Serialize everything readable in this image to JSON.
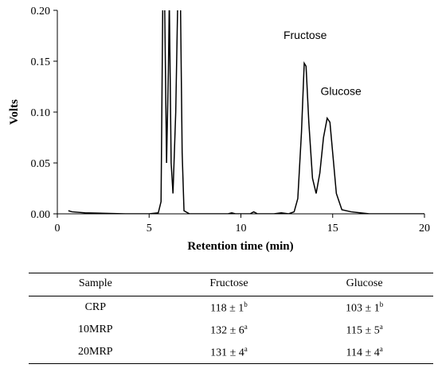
{
  "chart_data": {
    "type": "line",
    "xlabel": "Retention time (min)",
    "ylabel": "Volts",
    "xlim": [
      0,
      20
    ],
    "ylim": [
      0,
      0.2
    ],
    "x_ticks": [
      "0",
      "5",
      "10",
      "15",
      "20"
    ],
    "y_ticks": [
      "0.00",
      "0.05",
      "0.10",
      "0.15",
      "0.20"
    ],
    "grid": false,
    "series": [
      {
        "points": [
          [
            0.6,
            0.003
          ],
          [
            0.8,
            0.002
          ],
          [
            1.5,
            0.001
          ],
          [
            3.7,
            0.0
          ],
          [
            5.0,
            0.0
          ],
          [
            5.5,
            0.001
          ],
          [
            5.65,
            0.012
          ],
          [
            5.75,
            0.22
          ],
          [
            5.85,
            0.2
          ],
          [
            5.95,
            0.05
          ],
          [
            6.05,
            0.14
          ],
          [
            6.1,
            0.21
          ],
          [
            6.2,
            0.05
          ],
          [
            6.3,
            0.02
          ],
          [
            6.45,
            0.1
          ],
          [
            6.55,
            0.2
          ],
          [
            6.7,
            0.22
          ],
          [
            6.8,
            0.06
          ],
          [
            6.9,
            0.003
          ],
          [
            7.2,
            0.0
          ],
          [
            9.3,
            0.0
          ],
          [
            9.5,
            0.001
          ],
          [
            9.7,
            0.0
          ],
          [
            10.5,
            0.0
          ],
          [
            10.7,
            0.002
          ],
          [
            10.9,
            0.0
          ],
          [
            11.8,
            0.0
          ],
          [
            12.2,
            0.001
          ],
          [
            12.6,
            0.0
          ],
          [
            12.9,
            0.002
          ],
          [
            13.1,
            0.015
          ],
          [
            13.3,
            0.08
          ],
          [
            13.45,
            0.148
          ],
          [
            13.55,
            0.145
          ],
          [
            13.7,
            0.09
          ],
          [
            13.9,
            0.035
          ],
          [
            14.1,
            0.02
          ],
          [
            14.3,
            0.04
          ],
          [
            14.5,
            0.075
          ],
          [
            14.7,
            0.094
          ],
          [
            14.85,
            0.09
          ],
          [
            15.0,
            0.06
          ],
          [
            15.2,
            0.02
          ],
          [
            15.5,
            0.004
          ],
          [
            16.0,
            0.002
          ],
          [
            16.5,
            0.001
          ],
          [
            17.0,
            0.0
          ],
          [
            18.0,
            0.0
          ],
          [
            19.0,
            0.0
          ],
          [
            20.0,
            0.0
          ]
        ]
      }
    ],
    "annotations": [
      {
        "text": "Fructose",
        "x": 13.5,
        "y": 0.15
      },
      {
        "text": "Glucose",
        "x": 14.8,
        "y": 0.095
      }
    ]
  },
  "table": {
    "headers": [
      "Sample",
      "Fructose",
      "Glucose"
    ],
    "rows": [
      [
        {
          "v": "CRP"
        },
        {
          "v": "118 ± 1",
          "sup": "b"
        },
        {
          "v": "103 ± 1",
          "sup": "b"
        }
      ],
      [
        {
          "v": "10MRP"
        },
        {
          "v": "132 ± 6",
          "sup": "a"
        },
        {
          "v": "115 ± 5",
          "sup": "a"
        }
      ],
      [
        {
          "v": "20MRP"
        },
        {
          "v": "131 ± 4",
          "sup": "a"
        },
        {
          "v": "114 ± 4",
          "sup": "a"
        }
      ]
    ]
  }
}
